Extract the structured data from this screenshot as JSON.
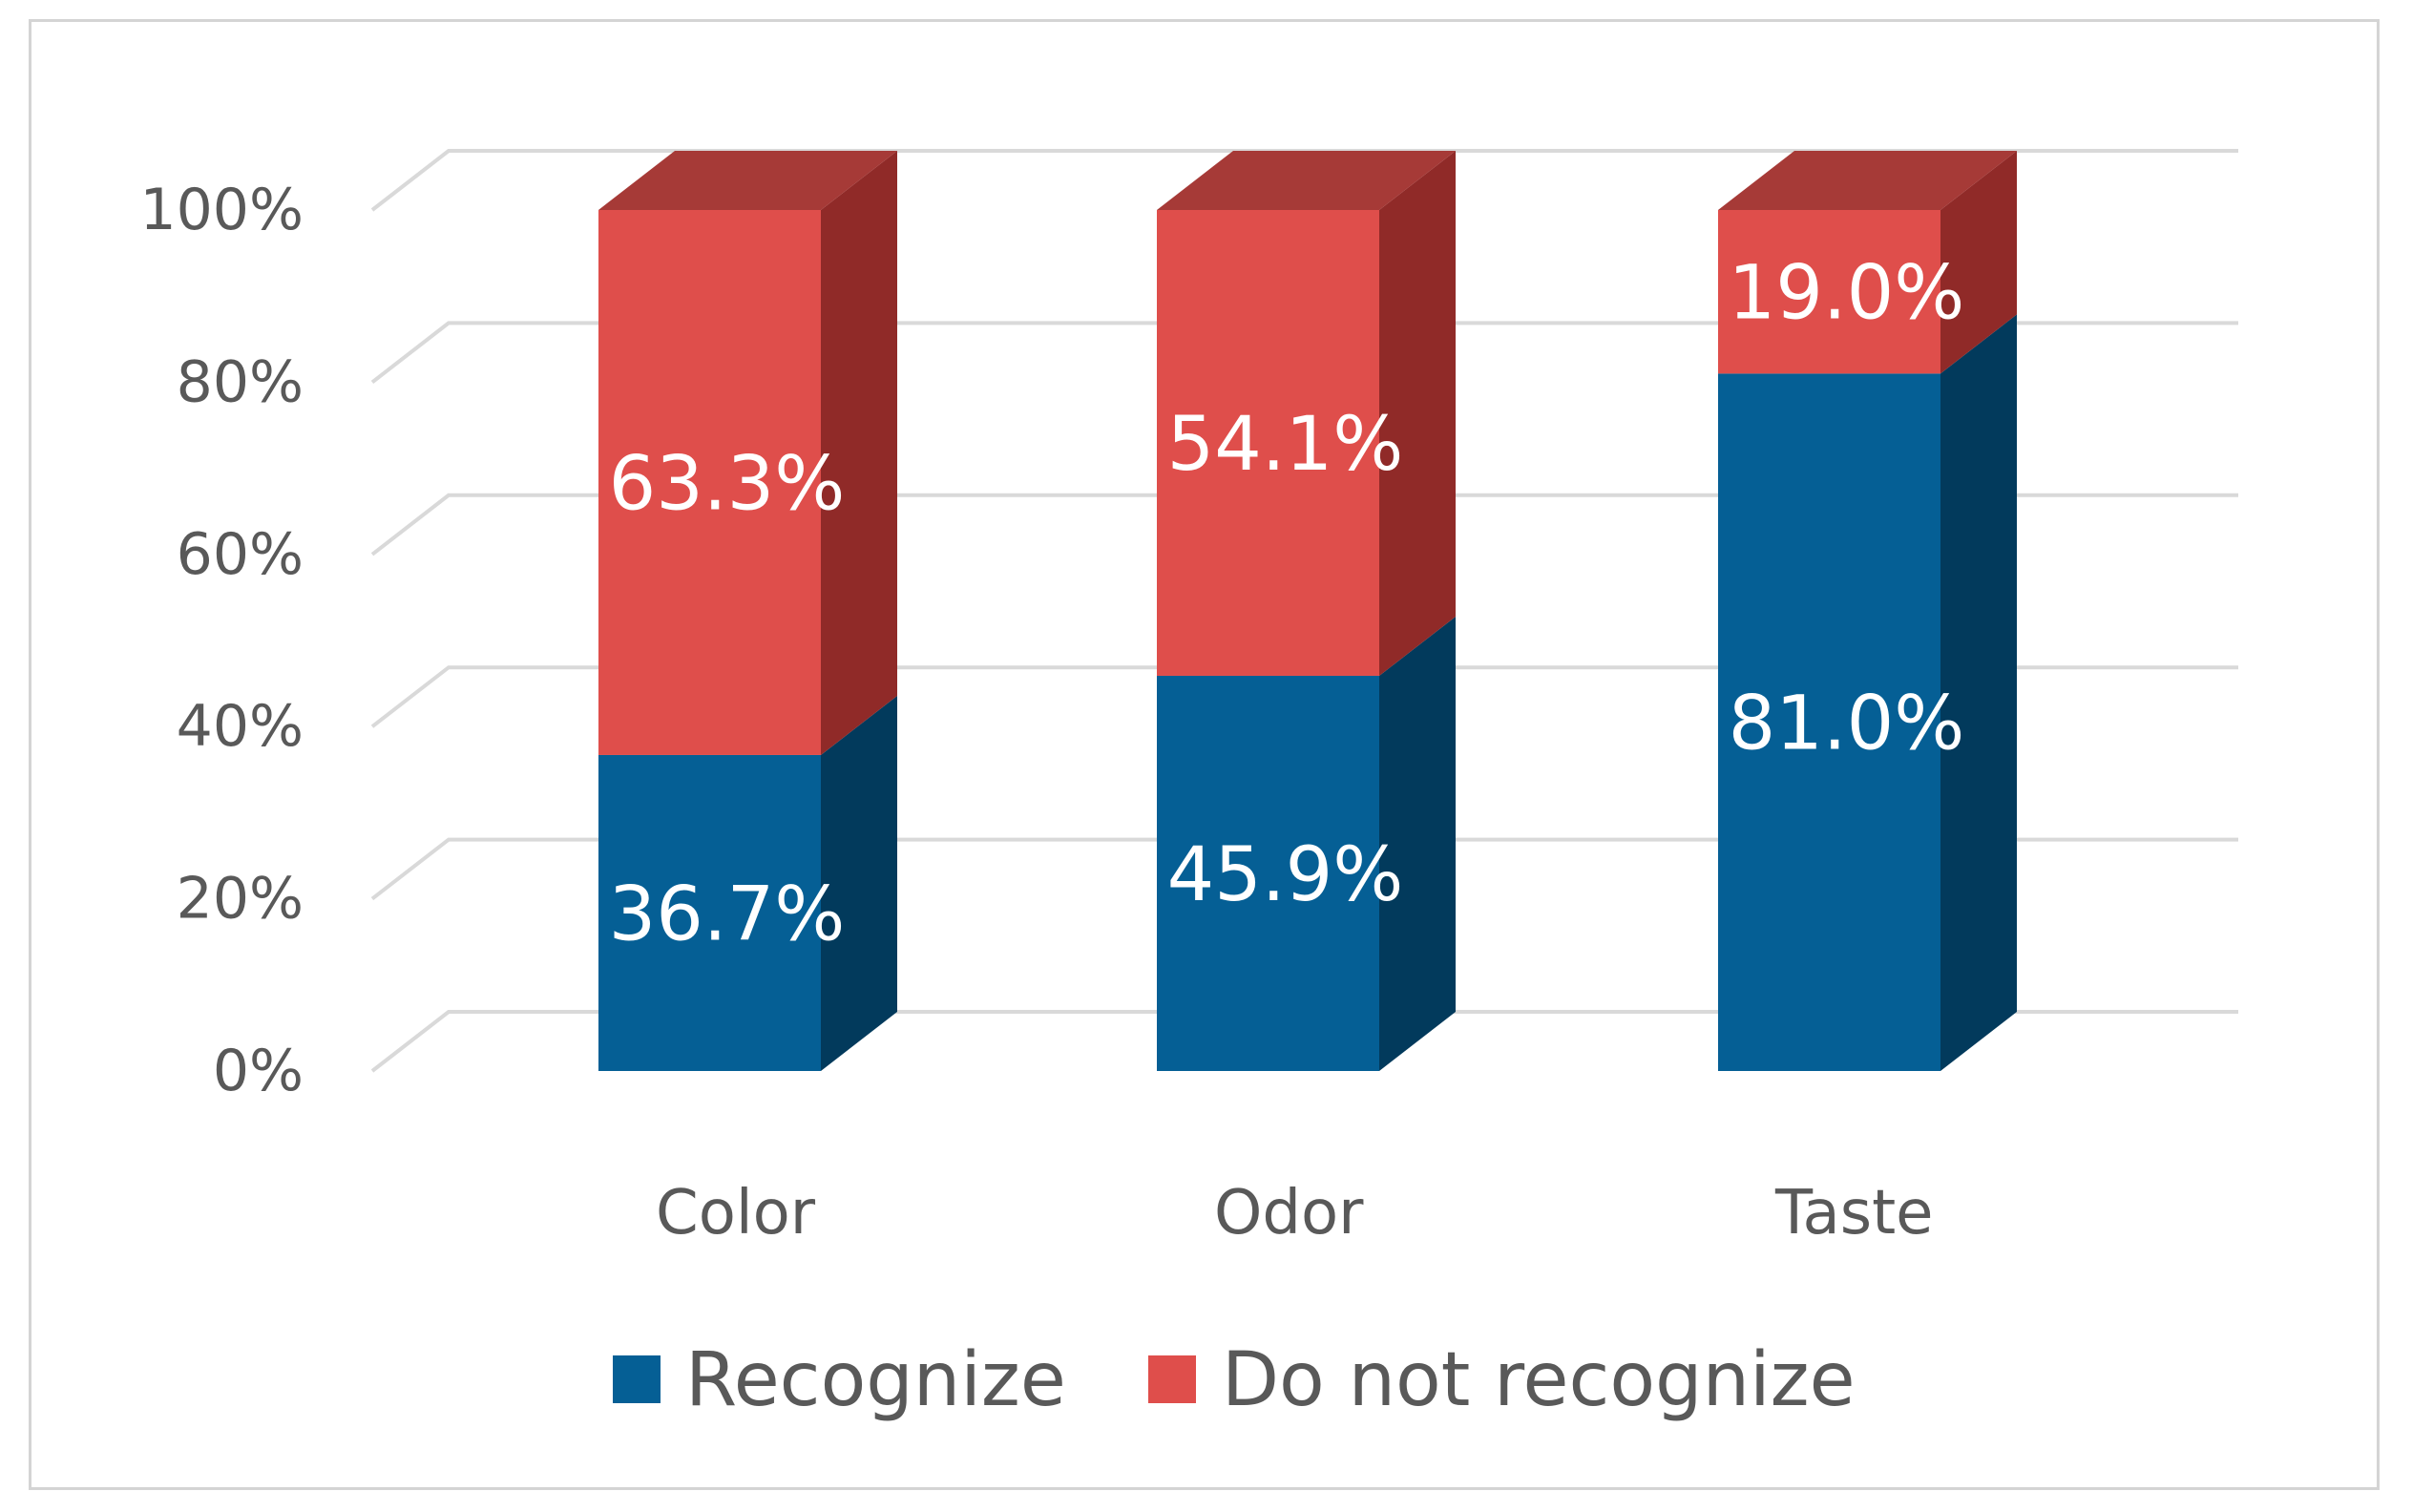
{
  "chart_data": {
    "type": "bar",
    "subtype": "stacked-100-3d",
    "categories": [
      "Color",
      "Odor",
      "Taste"
    ],
    "series": [
      {
        "name": "Recognize",
        "values": [
          36.7,
          45.9,
          81.0
        ],
        "labels": [
          "36.7%",
          "45.9%",
          "81.0%"
        ],
        "color": "#055F95",
        "side_color": "#023A5C"
      },
      {
        "name": "Do not recognize",
        "values": [
          63.3,
          54.1,
          19.0
        ],
        "labels": [
          "63.3%",
          "54.1%",
          "19.0%"
        ],
        "color": "#DF4E4B",
        "side_color": "#902A28",
        "top_color": "#A63A37"
      }
    ],
    "y_ticks": [
      "0%",
      "20%",
      "40%",
      "60%",
      "80%",
      "100%"
    ],
    "ylim": [
      0,
      100
    ],
    "grid": true,
    "legend_position": "bottom",
    "title": "",
    "xlabel": "",
    "ylabel": ""
  },
  "colors": {
    "gridline": "#D9D9D9",
    "text": "#595959",
    "frame": "#D4D4D4"
  }
}
